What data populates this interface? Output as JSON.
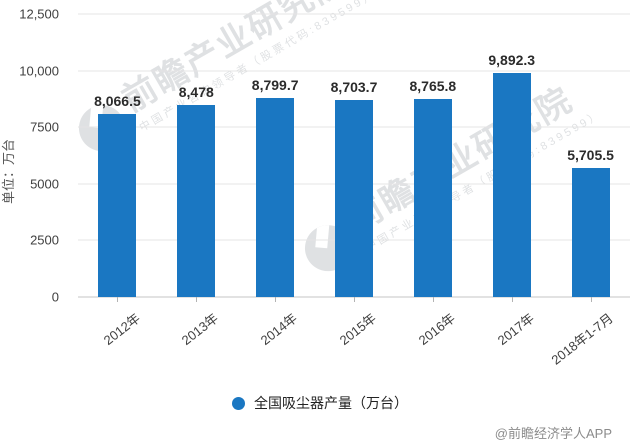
{
  "chart_data": {
    "type": "bar",
    "categories": [
      "2012年",
      "2013年",
      "2014年",
      "2015年",
      "2016年",
      "2017年",
      "2018年1-7月"
    ],
    "values": [
      8066.5,
      8478,
      8799.7,
      8703.7,
      8765.8,
      9892.3,
      5705.5
    ],
    "value_labels": [
      "8,066.5",
      "8,478",
      "8,799.7",
      "8,703.7",
      "8,765.8",
      "9,892.3",
      "5,705.5"
    ],
    "y_ticks": [
      "0",
      "2500",
      "5000",
      "7500",
      "10,000",
      "12,500"
    ],
    "ylim": [
      0,
      12500
    ],
    "ylabel": "单位：万台",
    "legend_label": "全国吸尘器产量（万台）",
    "legend_position": "bottom",
    "grid": true,
    "bar_color": "#1a77c2",
    "grid_color": "#e4e4e4",
    "title": ""
  },
  "watermark": {
    "brand": "前瞻产业研究院",
    "sub": "中国产业咨询领导者（股票代码:839599）"
  },
  "attribution": "@前瞻经济学人APP"
}
